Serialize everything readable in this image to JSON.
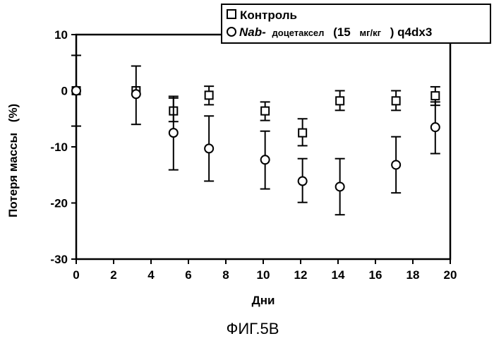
{
  "figure_caption": "ФИГ.5В",
  "chart_data": {
    "type": "scatter",
    "xlabel": "Дни",
    "ylabel": "Потеря массы",
    "ylabel_unit": "(%)",
    "xlim": [
      0,
      20
    ],
    "ylim": [
      -30,
      10
    ],
    "x_ticks": [
      0,
      2,
      4,
      6,
      8,
      10,
      12,
      14,
      16,
      18,
      20
    ],
    "y_ticks": [
      10,
      0,
      -10,
      -20,
      -30
    ],
    "grid": false,
    "legend_position": "top-right",
    "series": [
      {
        "name": "Контроль",
        "marker": "square",
        "x": [
          0,
          3.2,
          5.2,
          7.1,
          10.1,
          12.1,
          14.1,
          17.1,
          19.2
        ],
        "y": [
          0,
          0,
          -3.6,
          -0.8,
          -3.6,
          -7.5,
          -1.8,
          -1.8,
          -0.9
        ],
        "err_low": [
          0,
          0,
          -5.5,
          -2.5,
          -5.3,
          -9.8,
          -3.5,
          -3.5,
          -2.6
        ],
        "err_high": [
          0,
          0,
          -1.3,
          0.8,
          -2.0,
          -5.0,
          0,
          0,
          0.7
        ]
      },
      {
        "name": "Nab- доцетаксел (15 мг/кг ) q4dx3",
        "marker": "circle",
        "x": [
          0,
          3.2,
          5.2,
          7.1,
          10.1,
          12.1,
          14.1,
          17.1,
          19.2
        ],
        "y": [
          0,
          -0.6,
          -7.5,
          -10.3,
          -12.3,
          -16.1,
          -17.1,
          -13.2,
          -6.5
        ],
        "err_low": [
          -6.3,
          -6.0,
          -14.1,
          -16.1,
          -17.5,
          -19.9,
          -22.1,
          -18.2,
          -11.2
        ],
        "err_high": [
          6.3,
          4.4,
          -1.0,
          -4.5,
          -7.2,
          -12.1,
          -12.1,
          -8.2,
          -2.0
        ]
      }
    ],
    "legend": {
      "control": "Контроль",
      "treated_italic": "Nab-",
      "treated_drug": "доцетаксел",
      "treated_dose_open": "(15",
      "treated_unit": "мг/кг",
      "treated_tail": ") q4dx3"
    }
  }
}
